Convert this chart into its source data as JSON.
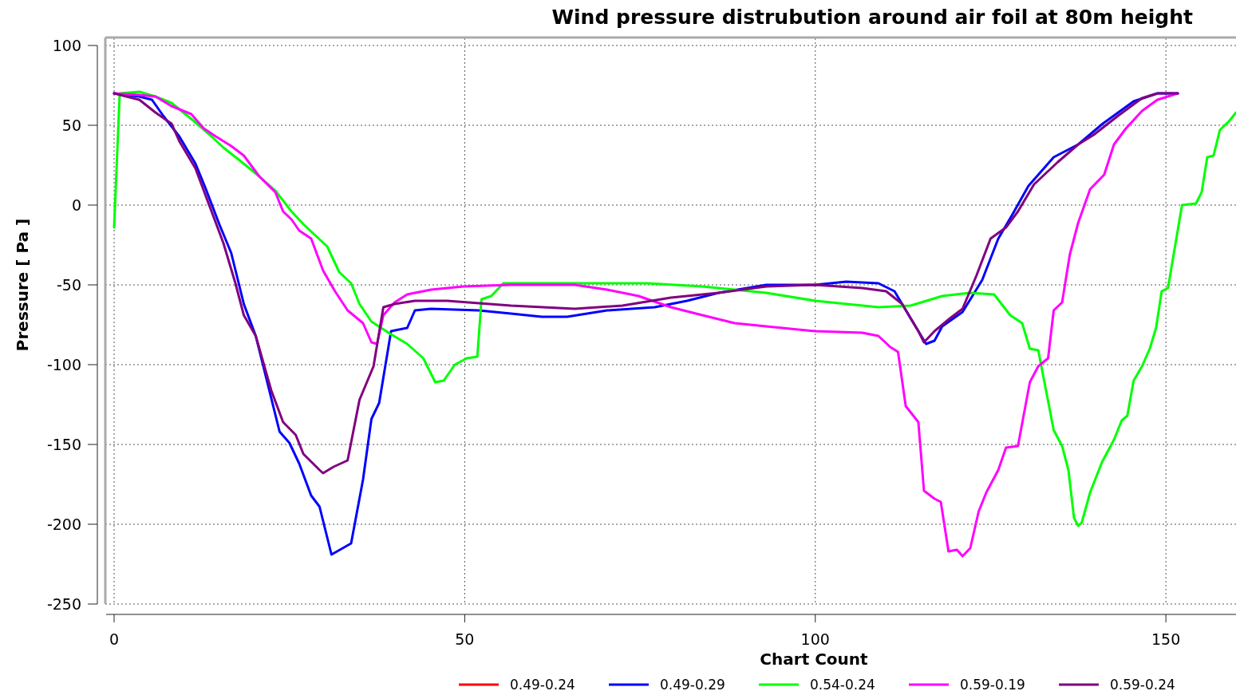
{
  "chart_data": {
    "type": "line",
    "title": "Wind pressure distrubution around air foil at 80m height",
    "xlabel": "Chart Count",
    "ylabel": "Pressure [ Pa ]",
    "xlim": [
      0,
      160
    ],
    "xticks": [
      0,
      50,
      100,
      150
    ],
    "ylim": [
      -250,
      100
    ],
    "yticks": [
      -250,
      -200,
      -150,
      -100,
      -50,
      0,
      50,
      100
    ],
    "grid": true,
    "legend": "bottom",
    "line_style": "solid",
    "series": [
      {
        "name": "0.49-0.24",
        "color": "#ff0000"
      },
      {
        "name": "0.49-0.29",
        "color": "#0000ff",
        "x": [
          0,
          3.6,
          5.4,
          7,
          9.3,
          11.6,
          13,
          15,
          16.7,
          18.5,
          20.2,
          21.9,
          23.6,
          25,
          26.4,
          28.1,
          29.3,
          31,
          33.8,
          35.5,
          36.7,
          37.8,
          39.5,
          41.8,
          42.9,
          45.2,
          52,
          56.6,
          61,
          64.6,
          70.3,
          77.1,
          81.7,
          86.2,
          93,
          100,
          104.4,
          109,
          111.3,
          113.6,
          115.8,
          117,
          118.1,
          121,
          123.8,
          126.1,
          128.1,
          130.4,
          134,
          137.5,
          141,
          145.4,
          148.8,
          151.7
        ],
        "values": [
          70,
          68,
          66,
          56,
          43,
          26,
          11,
          -12,
          -30,
          -62,
          -82,
          -112,
          -142,
          -149,
          -162,
          -182,
          -189,
          -219,
          -212,
          -172,
          -134,
          -124,
          -79,
          -77,
          -66,
          -65,
          -66,
          -68,
          -70,
          -70,
          -66,
          -64,
          -60,
          -55,
          -50,
          -50,
          -48,
          -49,
          -54,
          -71,
          -87,
          -85,
          -76,
          -67,
          -47,
          -21,
          -6,
          12,
          30,
          38,
          51,
          65,
          70,
          70
        ]
      },
      {
        "name": "0.54-0.24",
        "color": "#00ff00",
        "x": [
          0,
          0.8,
          3.6,
          5.9,
          8.2,
          11,
          13.9,
          15.6,
          17.9,
          20.7,
          23,
          25.3,
          27,
          28.7,
          30.4,
          32.1,
          33.8,
          35,
          36.7,
          39.5,
          41.8,
          44.1,
          45.8,
          47,
          48.6,
          50.3,
          51.8,
          52.4,
          53.8,
          55.5,
          63.4,
          76,
          83.9,
          93,
          100,
          109,
          113.6,
          118.1,
          122,
          125.5,
          127.8,
          129.5,
          130.6,
          131.8,
          132.9,
          134,
          135.2,
          136.1,
          136.9,
          137.5,
          138,
          139.2,
          140.9,
          142.6,
          143.7,
          144.5,
          145.4,
          146.6,
          147.7,
          148.6,
          149.4,
          150.3,
          152.3,
          154.3,
          155.1,
          155.9,
          156.8,
          157.7,
          159.1,
          160
        ],
        "values": [
          -14,
          70,
          71,
          68,
          64,
          54,
          43,
          36,
          28,
          18,
          9,
          -4,
          -12,
          -19,
          -26,
          -42,
          -49,
          -62,
          -73,
          -81,
          -87,
          -96,
          -111,
          -110,
          -100,
          -96,
          -95,
          -59,
          -57,
          -49,
          -49,
          -49,
          -51,
          -55,
          -60,
          -64,
          -63,
          -57,
          -55,
          -56,
          -69,
          -74,
          -90,
          -91,
          -116,
          -141,
          -151,
          -166,
          -196,
          -201,
          -199,
          -180,
          -161,
          -147,
          -135,
          -132,
          -110,
          -101,
          -90,
          -77,
          -54,
          -52,
          0,
          1,
          8,
          30,
          31,
          47,
          53,
          58
        ]
      },
      {
        "name": "0.59-0.19",
        "color": "#ff00ff",
        "x": [
          0,
          3.6,
          5.9,
          8.2,
          11,
          12.8,
          14.5,
          16.7,
          18.5,
          20.7,
          23,
          24.1,
          25.3,
          26.4,
          28.1,
          29.8,
          31.5,
          33.3,
          35.5,
          36.7,
          37.5,
          38.4,
          40,
          41.8,
          45.2,
          49.8,
          56.6,
          65.7,
          70.3,
          74.8,
          79.4,
          83.9,
          88.5,
          93,
          100,
          106.7,
          109,
          110.7,
          111.8,
          112.9,
          114.7,
          115.5,
          117,
          117.9,
          119,
          120.2,
          121,
          122.1,
          123.3,
          124.4,
          126.1,
          127.2,
          128.9,
          130.6,
          131.8,
          133.2,
          134,
          135.2,
          136.3,
          137.5,
          139.2,
          141.2,
          142.6,
          144.3,
          146.6,
          148.8,
          151.7
        ],
        "values": [
          70,
          69,
          68,
          62,
          57,
          48,
          43,
          37,
          31,
          18,
          8,
          -4,
          -9,
          -16,
          -21,
          -41,
          -54,
          -66,
          -74,
          -86,
          -87,
          -69,
          -61,
          -56,
          -53,
          -51,
          -50,
          -50,
          -53,
          -57,
          -64,
          -69,
          -74,
          -76,
          -79,
          -80,
          -82,
          -89,
          -92,
          -126,
          -136,
          -179,
          -184,
          -186,
          -217,
          -216,
          -220,
          -215,
          -192,
          -180,
          -166,
          -152,
          -151,
          -111,
          -101,
          -96,
          -66,
          -61,
          -31,
          -11,
          10,
          19,
          38,
          48,
          59,
          66,
          70
        ]
      },
      {
        "name": "0.59-0.24",
        "color": "#800080",
        "x": [
          0,
          3.6,
          5.9,
          8.2,
          9.3,
          11.6,
          13.9,
          15.6,
          17.3,
          18.5,
          20.2,
          22.4,
          24.1,
          25.9,
          27,
          29.3,
          29.8,
          31.3,
          33.3,
          35,
          37,
          38.4,
          40,
          42.9,
          47.5,
          56.6,
          65.7,
          72.5,
          79.4,
          86.2,
          93,
          100,
          106.7,
          110.1,
          112.4,
          114.7,
          115.5,
          117,
          119.2,
          121,
          123,
          125,
          127.2,
          128.9,
          131.2,
          134.6,
          137.5,
          139.7,
          143.2,
          146.6,
          148.8,
          151.7
        ],
        "values": [
          70,
          66,
          58,
          51,
          40,
          23,
          -4,
          -24,
          -49,
          -69,
          -82,
          -116,
          -136,
          -144,
          -156,
          -166,
          -168,
          -164,
          -160,
          -122,
          -101,
          -64,
          -62,
          -60,
          -60,
          -63,
          -65,
          -63,
          -58,
          -55,
          -51,
          -50,
          -52,
          -54,
          -62,
          -79,
          -86,
          -79,
          -71,
          -65,
          -44,
          -21,
          -14,
          -4,
          13,
          27,
          38,
          44,
          56,
          67,
          70,
          70
        ]
      }
    ]
  }
}
